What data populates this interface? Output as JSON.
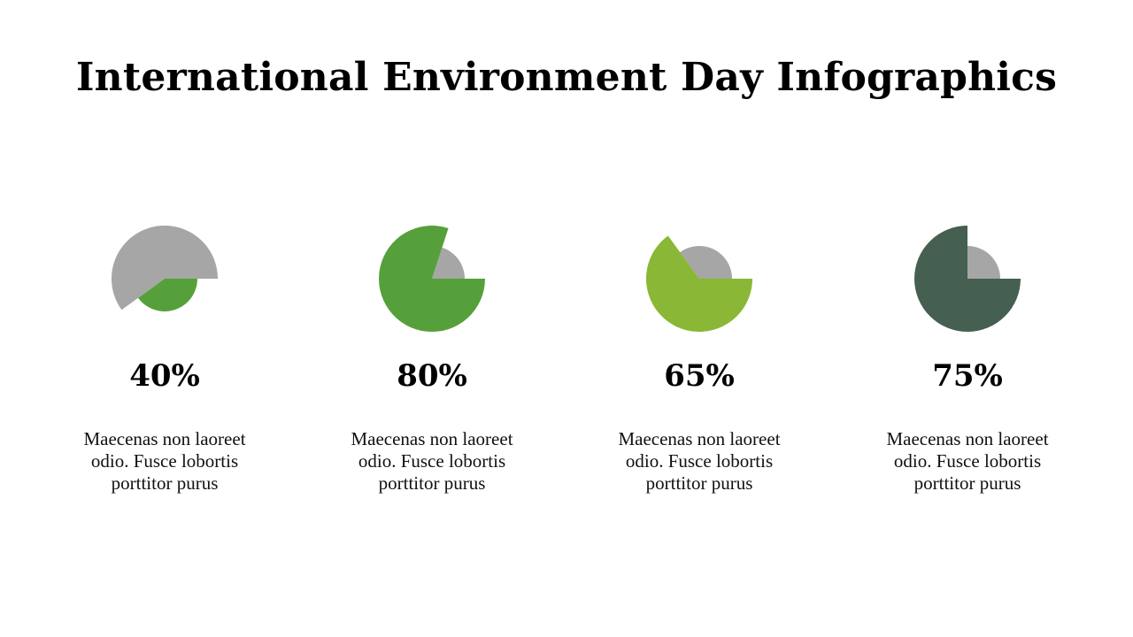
{
  "title": "International Environment Day Infographics",
  "colors": {
    "remainder": "#a6a6a6",
    "background": "#ffffff"
  },
  "chart_data": [
    {
      "type": "pie",
      "value_label": "40%",
      "values": [
        40,
        60
      ],
      "colors": [
        "#55a03a",
        "#a6a6a6"
      ],
      "description": "Maecenas non laoreet odio. Fusce lobortis porttitor purus"
    },
    {
      "type": "pie",
      "value_label": "80%",
      "values": [
        80,
        20
      ],
      "colors": [
        "#55a03a",
        "#a6a6a6"
      ],
      "description": "Maecenas non laoreet odio. Fusce lobortis porttitor purus"
    },
    {
      "type": "pie",
      "value_label": "65%",
      "values": [
        65,
        35
      ],
      "colors": [
        "#8ab736",
        "#a6a6a6"
      ],
      "description": "Maecenas non laoreet odio. Fusce lobortis porttitor purus"
    },
    {
      "type": "pie",
      "value_label": "75%",
      "values": [
        75,
        25
      ],
      "colors": [
        "#455f50",
        "#a6a6a6"
      ],
      "description": "Maecenas non laoreet odio. Fusce lobortis porttitor purus"
    }
  ]
}
